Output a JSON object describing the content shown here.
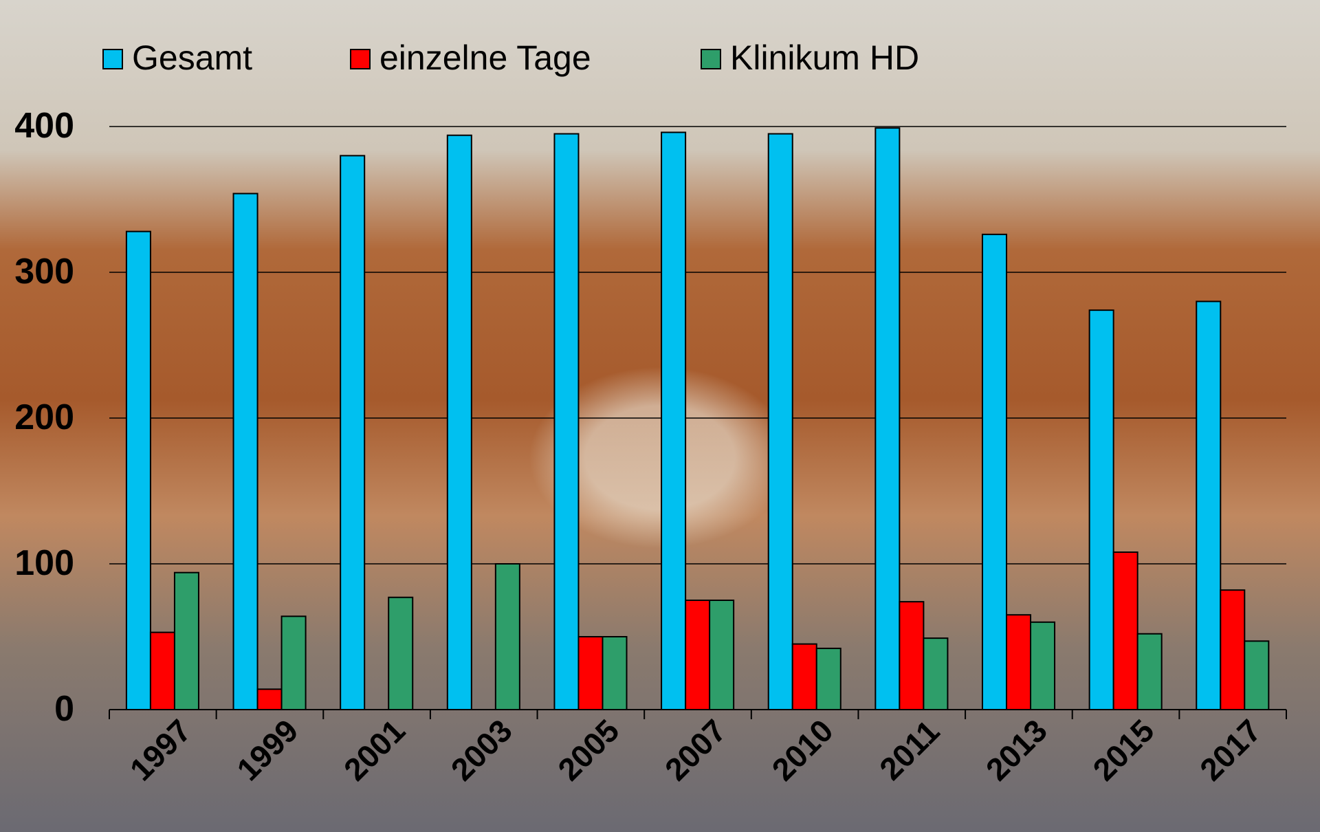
{
  "chart_data": {
    "type": "bar",
    "categories": [
      "1997",
      "1999",
      "2001",
      "2003",
      "2005",
      "2007",
      "2010",
      "2011",
      "2013",
      "2015",
      "2017"
    ],
    "series": [
      {
        "name": "Gesamt",
        "color": "#00c0f0",
        "values": [
          328,
          354,
          380,
          394,
          395,
          396,
          395,
          399,
          326,
          274,
          280
        ]
      },
      {
        "name": "einzelne Tage",
        "color": "#ff0000",
        "values": [
          53,
          14,
          null,
          null,
          50,
          75,
          45,
          74,
          65,
          108,
          82
        ]
      },
      {
        "name": "Klinikum HD",
        "color": "#2e9e6a",
        "values": [
          94,
          64,
          77,
          100,
          50,
          75,
          42,
          49,
          60,
          52,
          47
        ]
      }
    ],
    "ylim": [
      0,
      400
    ],
    "yticks": [
      0,
      100,
      200,
      300,
      400
    ],
    "grid": true,
    "legend": "top"
  }
}
